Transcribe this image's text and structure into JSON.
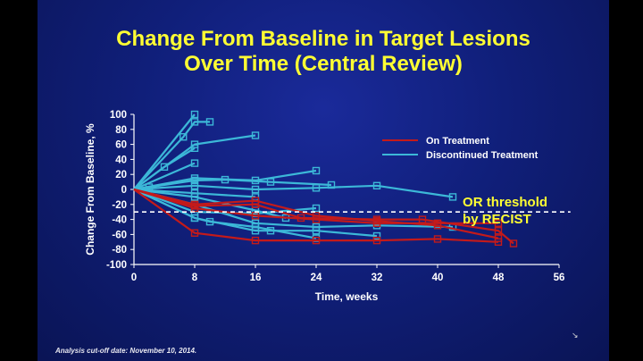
{
  "slide": {
    "title_line1": "Change From Baseline in Target Lesions",
    "title_line2": "Over Time (Central Review)",
    "footnote": "Analysis cut-off date: November 10, 2014.",
    "corner_mark": "↘"
  },
  "colors": {
    "on_treatment": "#c41a1a",
    "discontinued": "#3cb8d8",
    "threshold": "#ffffff",
    "threshold_label": "#ffff33",
    "axis": "#ffffff"
  },
  "chart_data": {
    "type": "line",
    "title": "",
    "xlabel": "Time, weeks",
    "ylabel": "Change From Baseline, %",
    "xlim": [
      0,
      56
    ],
    "ylim": [
      -100,
      100
    ],
    "xticks": [
      0,
      8,
      16,
      24,
      32,
      40,
      48,
      56
    ],
    "yticks": [
      100,
      80,
      60,
      40,
      20,
      0,
      -20,
      -40,
      -60,
      -80,
      -100
    ],
    "grid": false,
    "legend_position": "top-right",
    "legend": [
      {
        "label": "On Treatment",
        "color": "#c41a1a"
      },
      {
        "label": "Discontinued Treatment",
        "color": "#3cb8d8"
      }
    ],
    "threshold": {
      "y": -30,
      "label_line1": "OR threshold",
      "label_line2": "by RECIST"
    },
    "series": [
      {
        "group": "discontinued",
        "points": [
          [
            0,
            0
          ],
          [
            8,
            100
          ]
        ]
      },
      {
        "group": "discontinued",
        "points": [
          [
            0,
            0
          ],
          [
            6.5,
            70
          ],
          [
            8,
            90
          ],
          [
            10,
            90
          ]
        ]
      },
      {
        "group": "discontinued",
        "points": [
          [
            0,
            0
          ],
          [
            8,
            60
          ],
          [
            16,
            72
          ]
        ]
      },
      {
        "group": "discontinued",
        "points": [
          [
            0,
            0
          ],
          [
            4,
            30
          ],
          [
            8,
            55
          ]
        ]
      },
      {
        "group": "discontinued",
        "points": [
          [
            0,
            0
          ],
          [
            8,
            35
          ]
        ]
      },
      {
        "group": "discontinued",
        "points": [
          [
            0,
            0
          ],
          [
            8,
            15
          ],
          [
            16,
            12
          ],
          [
            24,
            25
          ]
        ]
      },
      {
        "group": "discontinued",
        "points": [
          [
            0,
            0
          ],
          [
            8,
            12
          ],
          [
            12,
            13
          ],
          [
            18,
            10
          ],
          [
            26,
            6
          ]
        ]
      },
      {
        "group": "discontinued",
        "points": [
          [
            0,
            0
          ],
          [
            8,
            5
          ],
          [
            16,
            0
          ],
          [
            24,
            2
          ],
          [
            32,
            5
          ],
          [
            42,
            -10
          ]
        ]
      },
      {
        "group": "discontinued",
        "points": [
          [
            0,
            0
          ],
          [
            8,
            -5
          ],
          [
            16,
            -10
          ]
        ]
      },
      {
        "group": "discontinued",
        "points": [
          [
            0,
            0
          ],
          [
            8,
            -10
          ],
          [
            16,
            -28
          ],
          [
            20,
            -38
          ]
        ]
      },
      {
        "group": "discontinued",
        "points": [
          [
            0,
            0
          ],
          [
            8,
            -20
          ],
          [
            16,
            -45
          ],
          [
            24,
            -50
          ],
          [
            32,
            -48
          ],
          [
            42,
            -50
          ]
        ]
      },
      {
        "group": "discontinued",
        "points": [
          [
            0,
            0
          ],
          [
            8,
            -38
          ],
          [
            16,
            -55
          ],
          [
            18,
            -55
          ],
          [
            24,
            -55
          ],
          [
            32,
            -62
          ]
        ]
      },
      {
        "group": "discontinued",
        "points": [
          [
            0,
            0
          ],
          [
            8,
            -38
          ],
          [
            10,
            -43
          ],
          [
            16,
            -50
          ],
          [
            24,
            -65
          ]
        ]
      },
      {
        "group": "discontinued",
        "points": [
          [
            0,
            0
          ],
          [
            8,
            -30
          ],
          [
            16,
            -32
          ],
          [
            24,
            -25
          ]
        ]
      },
      {
        "group": "discontinued",
        "points": [
          [
            0,
            0
          ],
          [
            2,
            3
          ]
        ]
      },
      {
        "group": "on_treatment",
        "points": [
          [
            0,
            0
          ],
          [
            8,
            -58
          ],
          [
            16,
            -68
          ],
          [
            24,
            -68
          ],
          [
            32,
            -68
          ],
          [
            40,
            -66
          ],
          [
            48,
            -70
          ]
        ]
      },
      {
        "group": "on_treatment",
        "points": [
          [
            0,
            0
          ],
          [
            8,
            -22
          ],
          [
            16,
            -20
          ],
          [
            22,
            -38
          ],
          [
            32,
            -40
          ],
          [
            38,
            -40
          ],
          [
            48,
            -55
          ],
          [
            50,
            -72
          ]
        ]
      },
      {
        "group": "on_treatment",
        "points": [
          [
            0,
            0
          ],
          [
            8,
            -25
          ],
          [
            16,
            -35
          ],
          [
            24,
            -40
          ],
          [
            32,
            -45
          ],
          [
            40,
            -45
          ],
          [
            48,
            -45
          ]
        ]
      },
      {
        "group": "on_treatment",
        "points": [
          [
            0,
            0
          ],
          [
            8,
            -20
          ],
          [
            16,
            -15
          ],
          [
            24,
            -35
          ],
          [
            32,
            -42
          ],
          [
            40,
            -48
          ],
          [
            48,
            -65
          ]
        ]
      }
    ]
  }
}
